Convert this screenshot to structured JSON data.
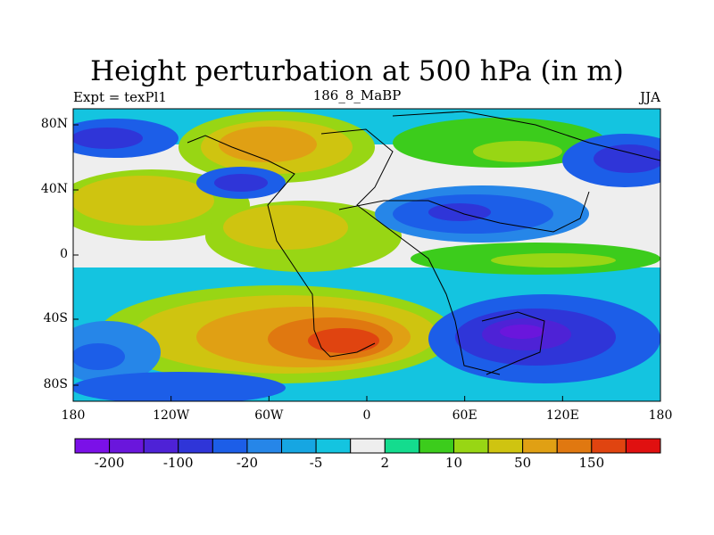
{
  "title": "Height perturbation at 500 hPa (in m)",
  "subtitle_left": "Expt = texPl1",
  "subtitle_center": "186_8_MaBP",
  "subtitle_right": "JJA",
  "axes": {
    "x_ticks": [
      "180",
      "120W",
      "60W",
      "0",
      "60E",
      "120E",
      "180"
    ],
    "y_ticks": [
      "80N",
      "40N",
      "0",
      "40S",
      "80S"
    ]
  },
  "colorbar": {
    "colors": [
      "#7b10e8",
      "#6a16dc",
      "#4e22d6",
      "#2f35d8",
      "#1c5ee8",
      "#2686e8",
      "#16a6e2",
      "#14c4e0",
      "#eeeeee",
      "#14dc8e",
      "#3ccc1c",
      "#98d614",
      "#cfc410",
      "#e0a014",
      "#e07810",
      "#e04410",
      "#e01010"
    ],
    "labels": [
      "-200",
      "-100",
      "-20",
      "-5",
      "2",
      "10",
      "50",
      "150"
    ]
  }
}
